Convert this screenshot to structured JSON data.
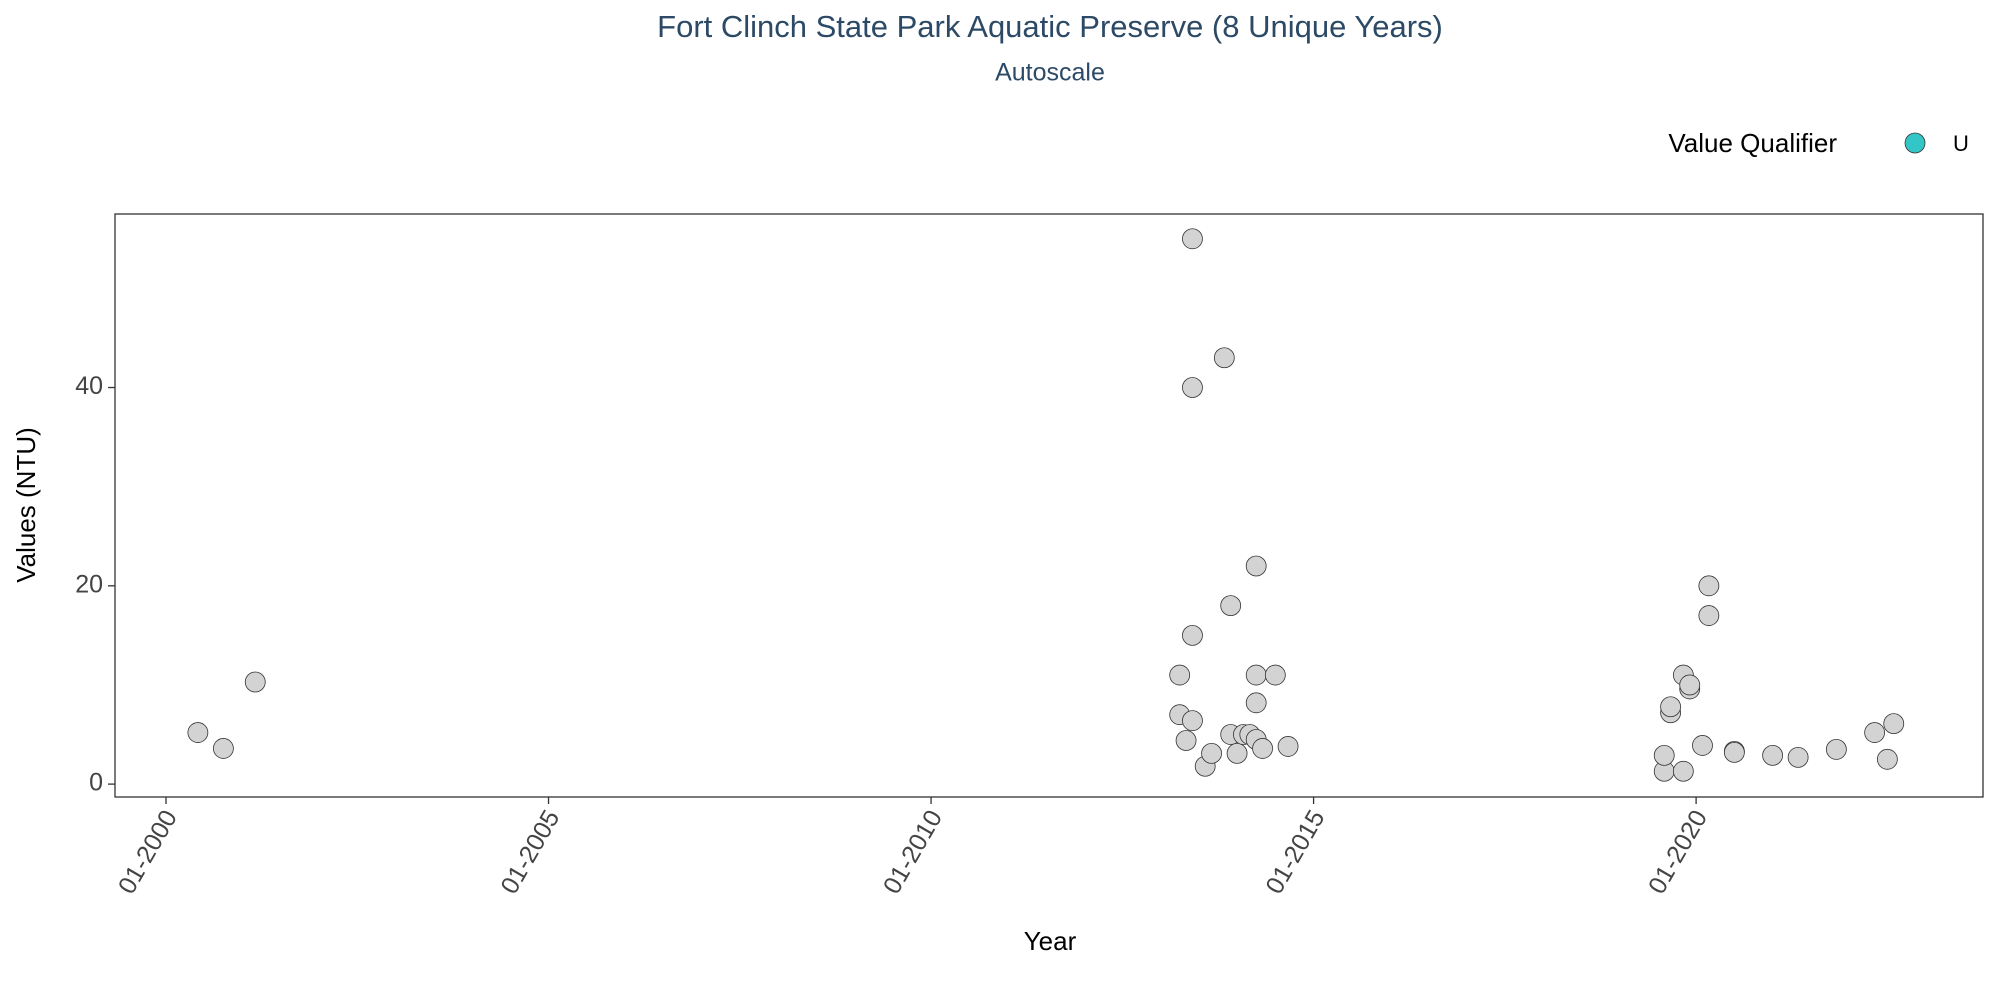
{
  "chart_data": {
    "type": "scatter",
    "title": "Fort Clinch State Park Aquatic Preserve (8 Unique Years)",
    "subtitle": "Autoscale",
    "x_label": "Year",
    "y_label": "Values (NTU)",
    "legend_title": "Value Qualifier",
    "xlim": [
      "1999-05",
      "2023-10"
    ],
    "xticks": [
      {
        "value": "2000-01",
        "label": "01-2000"
      },
      {
        "value": "2005-01",
        "label": "01-2005"
      },
      {
        "value": "2010-01",
        "label": "01-2010"
      },
      {
        "value": "2015-01",
        "label": "01-2015"
      },
      {
        "value": "2020-01",
        "label": "01-2020"
      }
    ],
    "ylim": [
      -1.3,
      57.5
    ],
    "yticks": [
      0,
      20,
      40
    ],
    "series": [
      {
        "color": "#d3d3d3",
        "x": [
          "2000-06",
          "2000-10",
          "2001-03",
          "2013-04",
          "2013-04",
          "2013-05",
          "2013-06",
          "2013-06",
          "2013-06",
          "2013-06",
          "2013-08",
          "2013-09",
          "2013-11",
          "2013-12",
          "2013-12",
          "2014-01",
          "2014-02",
          "2014-03",
          "2014-04",
          "2014-04",
          "2014-04",
          "2014-04",
          "2014-05",
          "2014-07",
          "2014-09",
          "2019-08",
          "2019-08",
          "2019-09",
          "2019-09",
          "2019-11",
          "2019-11",
          "2019-12",
          "2019-12",
          "2020-02",
          "2020-03",
          "2020-03",
          "2020-07",
          "2020-07",
          "2021-01",
          "2021-05",
          "2021-11",
          "2022-05",
          "2022-07",
          "2022-08"
        ],
        "values": [
          5.2,
          3.6,
          10.3,
          11,
          7,
          4.4,
          55,
          40,
          15,
          6.4,
          1.8,
          3.1,
          43,
          18,
          5,
          3.1,
          5,
          5,
          22,
          11,
          8.2,
          4.5,
          3.6,
          11,
          3.8,
          1.3,
          2.9,
          7.2,
          7.8,
          1.3,
          11,
          9.6,
          10,
          3.9,
          20,
          17,
          3.3,
          3.2,
          2.9,
          2.7,
          3.5,
          5.2,
          2.5,
          6.1
        ]
      },
      {
        "name": "U",
        "color": "#33c6c6",
        "x": [],
        "values": []
      }
    ]
  }
}
